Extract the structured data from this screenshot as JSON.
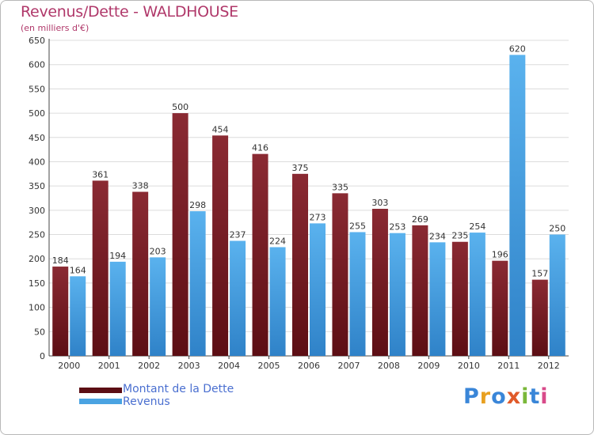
{
  "title": "Revenus/Dette - WALDHOUSE",
  "subtitle": "(en milliers d'€)",
  "colors": {
    "dette": "#7a1f28",
    "revenus": "#4aa3e2",
    "title": "#b0386a",
    "legend_text": "#4a6fd0"
  },
  "legend": {
    "dette_label": "Montant de la Dette",
    "revenus_label": "Revenus"
  },
  "logo": {
    "text": "Proxiti"
  },
  "chart_data": {
    "type": "bar",
    "title": "Revenus/Dette - WALDHOUSE",
    "subtitle": "(en milliers d'€)",
    "xlabel": "",
    "ylabel": "",
    "ylim": [
      0,
      650
    ],
    "yticks": [
      0,
      50,
      100,
      150,
      200,
      250,
      300,
      350,
      400,
      450,
      500,
      550,
      600,
      650
    ],
    "grid": true,
    "legend_position": "bottom-left",
    "categories": [
      "2000",
      "2001",
      "2002",
      "2003",
      "2004",
      "2005",
      "2006",
      "2007",
      "2008",
      "2009",
      "2010",
      "2011",
      "2012"
    ],
    "series": [
      {
        "name": "Montant de la Dette",
        "color": "#7a1f28",
        "values": [
          184,
          361,
          338,
          500,
          454,
          416,
          375,
          335,
          303,
          269,
          235,
          196,
          157
        ]
      },
      {
        "name": "Revenus",
        "color": "#4aa3e2",
        "values": [
          164,
          194,
          203,
          298,
          237,
          224,
          273,
          255,
          253,
          234,
          254,
          620,
          250
        ]
      }
    ]
  }
}
